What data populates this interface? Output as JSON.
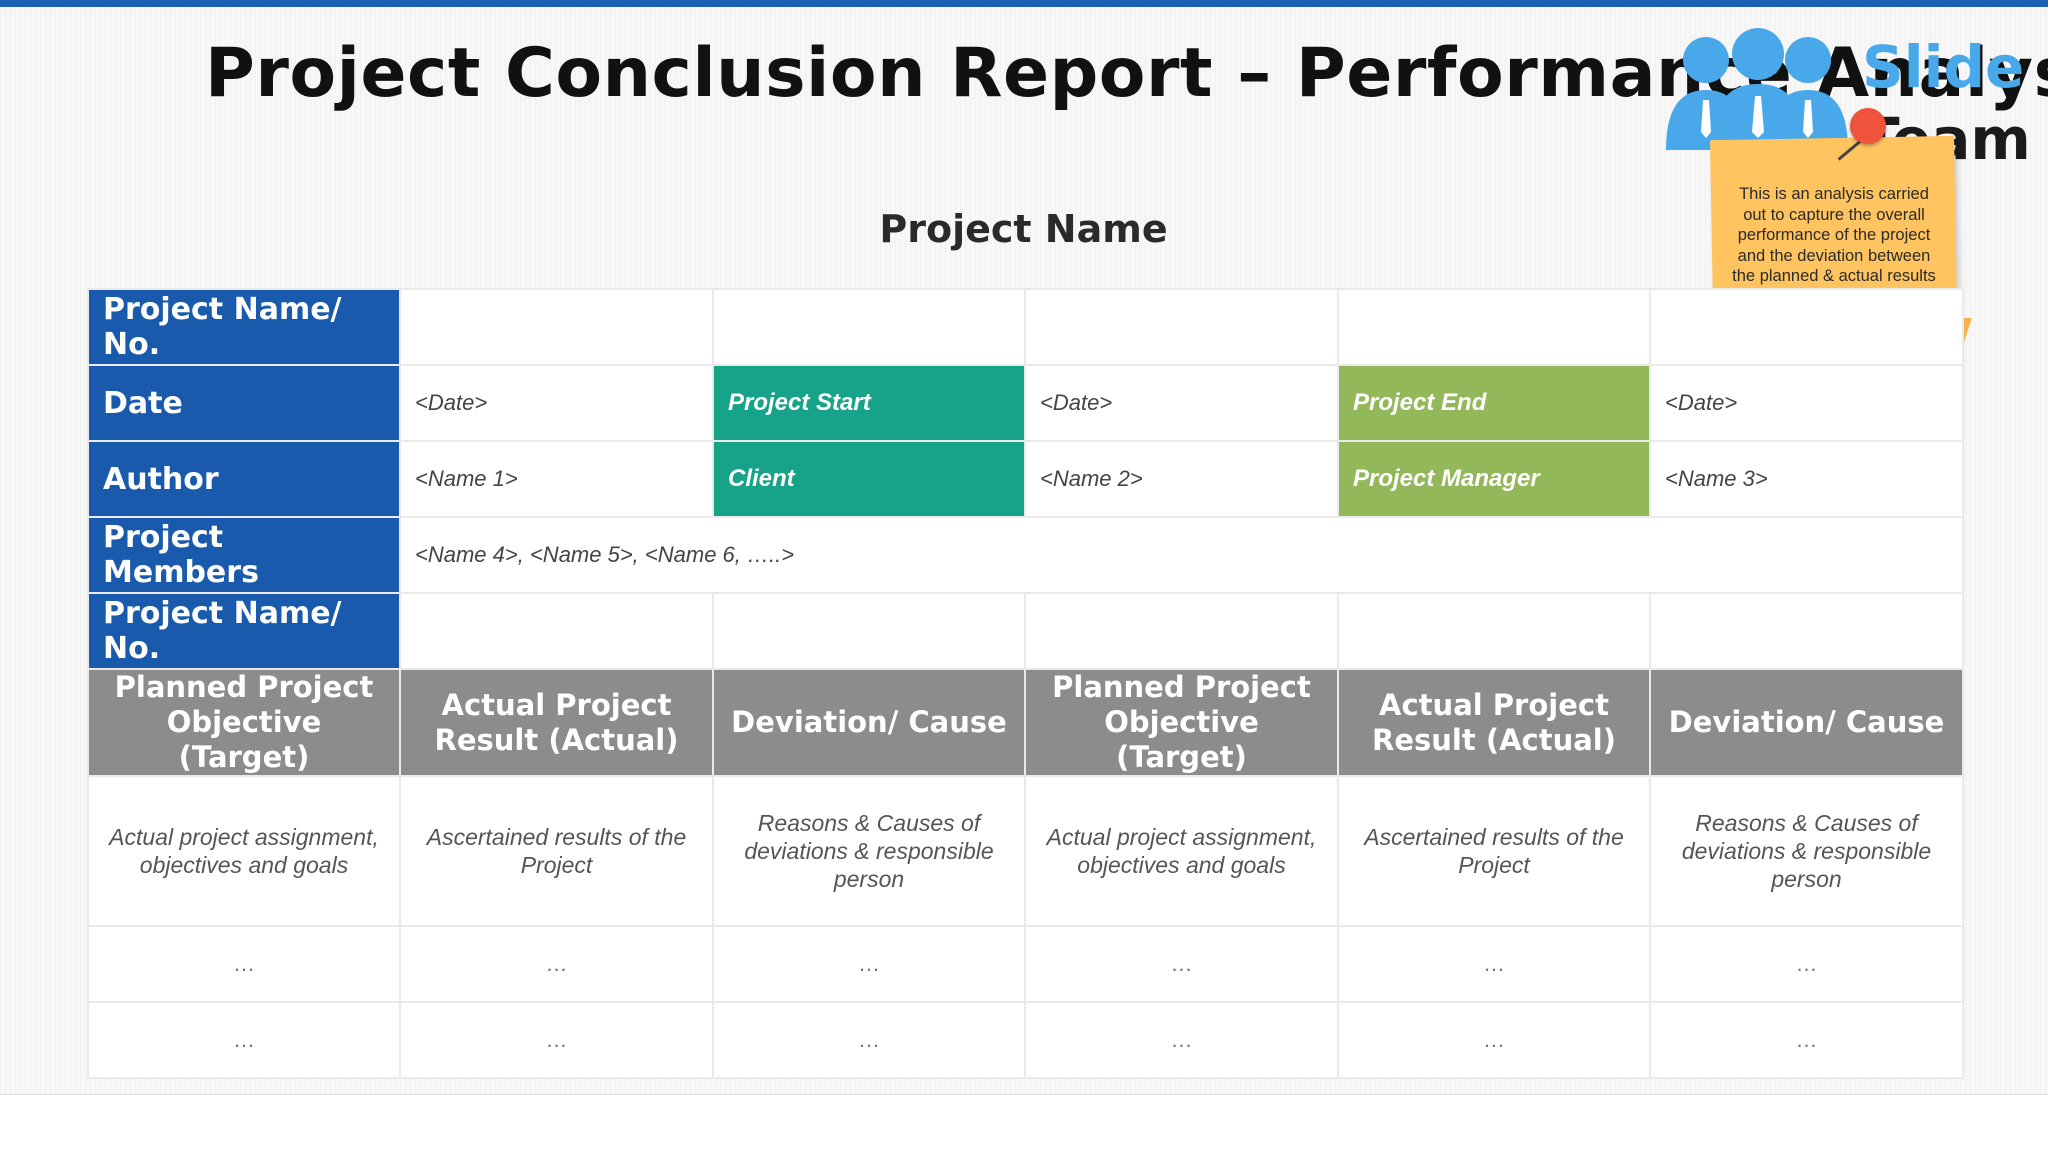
{
  "title": "Project Conclusion Report – Performance Analysis",
  "subtitle": "Project Name",
  "logo": {
    "line1": "Slide",
    "line2": "Team",
    "icon": "people-icon"
  },
  "note": "This is an analysis carried out to capture the overall performance of the project and the deviation between the planned & actual results",
  "info": {
    "row1": {
      "label": "Project Name/ No."
    },
    "row2": {
      "label": "Date",
      "v1": "<Date>",
      "k2": "Project Start",
      "v2": "<Date>",
      "k3": "Project End",
      "v3": "<Date>"
    },
    "row3": {
      "label": "Author",
      "v1": "<Name 1>",
      "k2": "Client",
      "v2": "<Name 2>",
      "k3": "Project Manager",
      "v3": "<Name 3>"
    },
    "row4": {
      "label": "Project Members",
      "v1": "<Name 4>, <Name 5>, <Name 6, …..>"
    },
    "row5": {
      "label": "Project Name/ No."
    }
  },
  "columns": [
    "Planned Project Objective (Target)",
    "Actual Project Result (Actual)",
    "Deviation/ Cause",
    "Planned Project Objective (Target)",
    "Actual Project Result (Actual)",
    "Deviation/ Cause"
  ],
  "descriptions": [
    "Actual project assignment, objectives and goals",
    "Ascertained results of the Project",
    "Reasons & Causes of deviations & responsible person",
    "Actual project assignment, objectives and goals",
    "Ascertained results of the Project",
    "Reasons & Causes of deviations & responsible person"
  ],
  "ellipsis": "…",
  "colors": {
    "label_blue": "#1a5aac",
    "teal": "#17a28a",
    "green": "#93b85a",
    "header_gray": "#8c8c8c",
    "top_bar": "#1d5fb0"
  }
}
